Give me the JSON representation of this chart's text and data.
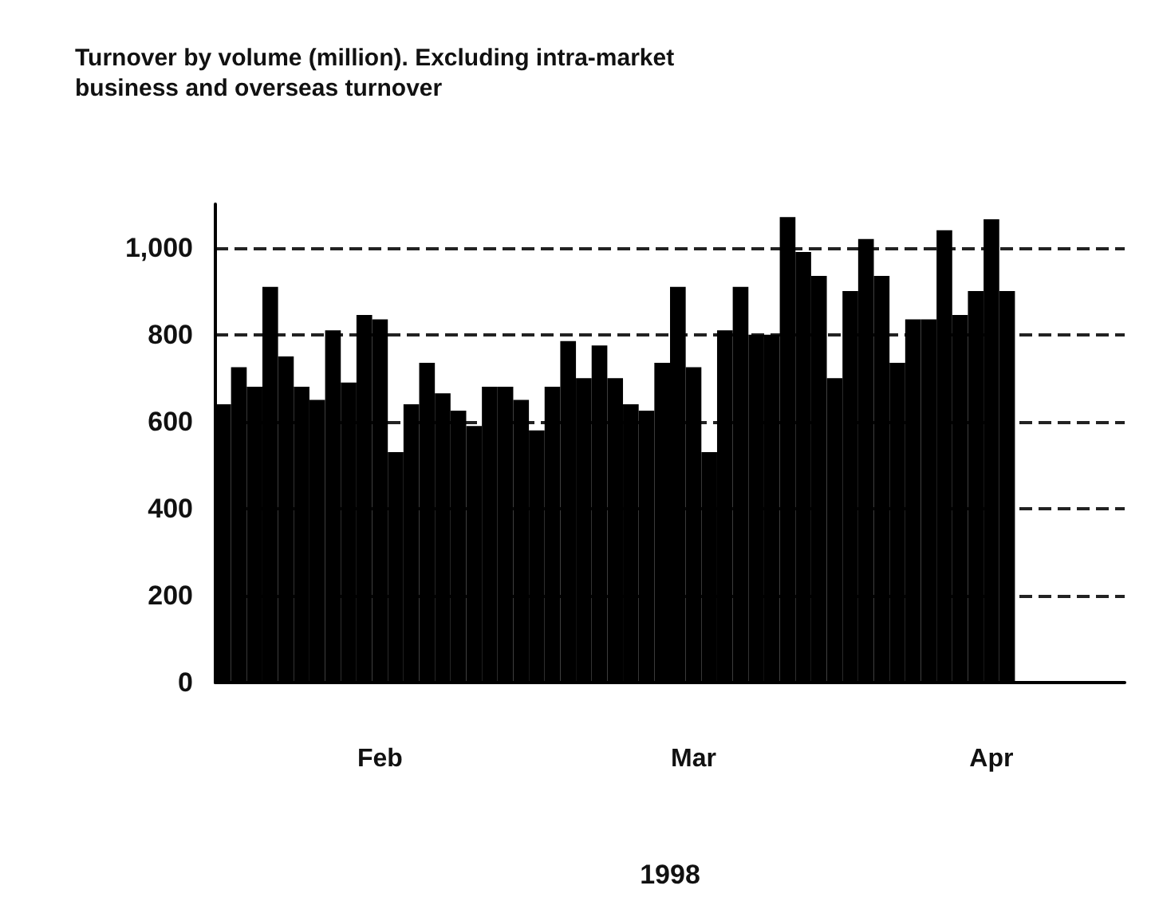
{
  "chart_data": {
    "type": "bar",
    "title": "Turnover by volume (million). Excluding intra-market business and overseas turnover",
    "xlabel": "1998",
    "categories": [
      null,
      null,
      null,
      null,
      null,
      null,
      null,
      null,
      null,
      null,
      "Feb",
      null,
      null,
      null,
      null,
      null,
      null,
      null,
      null,
      null,
      null,
      null,
      null,
      null,
      null,
      null,
      null,
      null,
      null,
      null,
      "Mar",
      null,
      null,
      null,
      null,
      null,
      null,
      null,
      null,
      null,
      null,
      null,
      null,
      null,
      null,
      null,
      null,
      null,
      null,
      "Apr",
      null,
      null,
      null,
      null,
      null,
      null,
      null,
      null
    ],
    "values": [
      640,
      725,
      680,
      910,
      750,
      680,
      650,
      810,
      690,
      845,
      835,
      530,
      640,
      735,
      665,
      625,
      590,
      680,
      680,
      650,
      580,
      680,
      785,
      700,
      775,
      700,
      640,
      625,
      735,
      910,
      725,
      530,
      810,
      910,
      800,
      800,
      1070,
      990,
      935,
      700,
      900,
      1020,
      935,
      735,
      835,
      835,
      1040,
      845,
      900,
      1065,
      900,
      null,
      null,
      null,
      null,
      null,
      null,
      null
    ],
    "color": "#000000",
    "ylim": [
      0,
      1100
    ],
    "yticks": [
      0,
      200,
      400,
      600,
      800,
      {
        "value": 1000,
        "label": "1,000"
      }
    ],
    "grid": "y"
  }
}
